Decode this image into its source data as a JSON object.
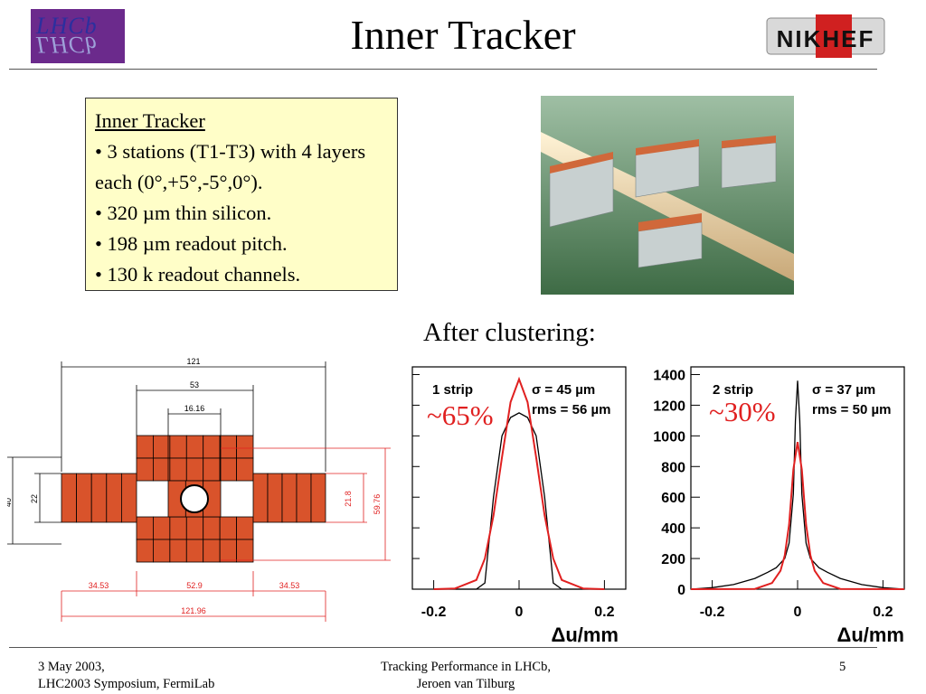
{
  "slide": {
    "title": "Inner Tracker",
    "logo_left": {
      "line1": "LHCb",
      "line2": "LHCb"
    },
    "logo_right": "NIKHEF"
  },
  "infobox": {
    "heading": "Inner Tracker",
    "bullets": [
      "• 3 stations (T1-T3) with 4 layers each (0°,+5°,-5°,0°).",
      "• 320 µm thin silicon.",
      "• 198 µm readout pitch.",
      "• 130 k readout channels."
    ]
  },
  "after_clustering": "After clustering:",
  "annotations": {
    "left": "~65%",
    "right": "~30%"
  },
  "detector_drawing": {
    "dimensions_black": [
      "121",
      "53",
      "16.16",
      "40",
      "22"
    ],
    "dimensions_red": [
      "34.53",
      "52.9",
      "34.53",
      "121.96",
      "21.8",
      "59.76"
    ],
    "colors": {
      "box_fill": "#d9532b",
      "red_dim": "#e02020"
    }
  },
  "chart_data": [
    {
      "type": "line",
      "title": "1 strip",
      "stats": [
        "σ = 45 µm",
        "rms = 56 µm"
      ],
      "xlabel": "Δu/mm",
      "xlim": [
        -0.25,
        0.25
      ],
      "xticks": [
        "-0.2",
        "0",
        "0.2"
      ],
      "ylim": [
        0,
        1450
      ],
      "series": [
        {
          "color": "#000000",
          "x": [
            -0.2,
            -0.15,
            -0.12,
            -0.1,
            -0.08,
            -0.06,
            -0.04,
            -0.02,
            0,
            0.02,
            0.04,
            0.06,
            0.08,
            0.1,
            0.12,
            0.15,
            0.2
          ],
          "values": [
            0,
            0,
            0,
            0,
            40,
            600,
            1000,
            1120,
            1150,
            1120,
            1000,
            600,
            40,
            0,
            0,
            0,
            0
          ]
        },
        {
          "color": "#e02020",
          "x": [
            -0.2,
            -0.15,
            -0.1,
            -0.08,
            -0.06,
            -0.04,
            -0.02,
            0,
            0.02,
            0.04,
            0.06,
            0.08,
            0.1,
            0.15,
            0.2
          ],
          "values": [
            0,
            5,
            60,
            200,
            480,
            860,
            1220,
            1370,
            1220,
            860,
            480,
            200,
            60,
            5,
            0
          ]
        }
      ]
    },
    {
      "type": "line",
      "title": "2 strip",
      "stats": [
        "σ = 37 µm",
        "rms = 50 µm"
      ],
      "xlabel": "Δu/mm",
      "xlim": [
        -0.25,
        0.25
      ],
      "xticks": [
        "-0.2",
        "0",
        "0.2"
      ],
      "ylim": [
        0,
        1450
      ],
      "yticks": [
        "0",
        "200",
        "400",
        "600",
        "800",
        "1000",
        "1200",
        "1400"
      ],
      "series": [
        {
          "color": "#000000",
          "x": [
            -0.25,
            -0.2,
            -0.15,
            -0.1,
            -0.07,
            -0.05,
            -0.03,
            -0.02,
            -0.01,
            -0.005,
            0,
            0.005,
            0.01,
            0.02,
            0.03,
            0.05,
            0.07,
            0.1,
            0.15,
            0.2,
            0.25
          ],
          "values": [
            0,
            10,
            30,
            70,
            110,
            140,
            200,
            300,
            620,
            1100,
            1360,
            1100,
            620,
            300,
            200,
            140,
            110,
            70,
            30,
            10,
            0
          ]
        },
        {
          "color": "#e02020",
          "x": [
            -0.25,
            -0.1,
            -0.06,
            -0.04,
            -0.03,
            -0.02,
            -0.01,
            0,
            0.01,
            0.02,
            0.03,
            0.04,
            0.06,
            0.1,
            0.25
          ],
          "values": [
            0,
            2,
            40,
            120,
            220,
            420,
            780,
            960,
            780,
            420,
            220,
            120,
            40,
            2,
            0
          ]
        }
      ]
    }
  ],
  "footer": {
    "left_line1": "3 May 2003,",
    "left_line2": "LHC2003 Symposium, FermiLab",
    "center_line1": "Tracking Performance in LHCb,",
    "center_line2": "Jeroen van Tilburg",
    "page": "5"
  }
}
